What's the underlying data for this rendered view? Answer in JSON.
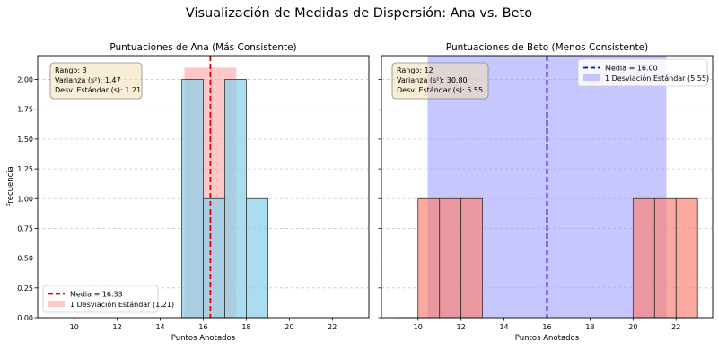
{
  "figure_title": "Visualización de Medidas de Dispersión: Ana vs. Beto",
  "chart_data": [
    {
      "type": "histogram",
      "title": "Puntuaciones de Ana (Más Consistente)",
      "xlabel": "Puntos Anotados",
      "ylabel": "Frecuencia",
      "xlim": [
        8.3,
        23.7
      ],
      "ylim": [
        0,
        2.2
      ],
      "xticks": [
        10,
        12,
        14,
        16,
        18,
        20,
        22
      ],
      "yticks": [
        0.0,
        0.25,
        0.5,
        0.75,
        1.0,
        1.25,
        1.5,
        1.75,
        2.0
      ],
      "ytick_labels": [
        "0.00",
        "0.25",
        "0.50",
        "0.75",
        "1.00",
        "1.25",
        "1.50",
        "1.75",
        "2.00"
      ],
      "grid": "y-dashed",
      "bar_color": "#87CEEB",
      "bins": [
        {
          "x0": 15,
          "x1": 16,
          "count": 2
        },
        {
          "x0": 16,
          "x1": 17,
          "count": 1
        },
        {
          "x0": 17,
          "x1": 18,
          "count": 2
        },
        {
          "x0": 18,
          "x1": 19,
          "count": 1
        }
      ],
      "mean": 16.33,
      "std": 1.21,
      "mean_color": "#e00000",
      "band_color": "#ff9a9a",
      "band_height": 2.1,
      "legend_position": "lower-left",
      "legend": [
        "Media = 16.33",
        "1 Desviación Estándar (1.21)"
      ],
      "stats_box": [
        "Rango: 3",
        "Varianza (s²): 1.47",
        "Desv. Estándar (s): 1.21"
      ]
    },
    {
      "type": "histogram",
      "title": "Puntuaciones de Beto (Menos Consistente)",
      "xlabel": "Puntos Anotados",
      "ylabel": "",
      "xlim": [
        8.3,
        23.7
      ],
      "ylim": [
        0,
        2.2
      ],
      "xticks": [
        10,
        12,
        14,
        16,
        18,
        20,
        22
      ],
      "yticks": [
        0.0,
        0.25,
        0.5,
        0.75,
        1.0,
        1.25,
        1.5,
        1.75,
        2.0
      ],
      "ytick_labels": [],
      "grid": "y-dashed",
      "bar_color": "#fa8072",
      "bins": [
        {
          "x0": 10,
          "x1": 11,
          "count": 1
        },
        {
          "x0": 11,
          "x1": 12,
          "count": 1
        },
        {
          "x0": 12,
          "x1": 13,
          "count": 1
        },
        {
          "x0": 20,
          "x1": 21,
          "count": 1
        },
        {
          "x0": 21,
          "x1": 22,
          "count": 1
        },
        {
          "x0": 22,
          "x1": 23,
          "count": 1
        }
      ],
      "baseline_range": [
        9,
        10
      ],
      "mean": 16.0,
      "std": 5.55,
      "mean_color": "#0000e0",
      "band_color": "#9999ff",
      "band_height": 2.2,
      "legend_position": "upper-right",
      "legend": [
        "Media = 16.00",
        "1 Desviación Estándar (5.55)"
      ],
      "stats_box": [
        "Rango: 12",
        "Varianza (s²): 30.80",
        "Desv. Estándar (s): 5.55"
      ]
    }
  ]
}
